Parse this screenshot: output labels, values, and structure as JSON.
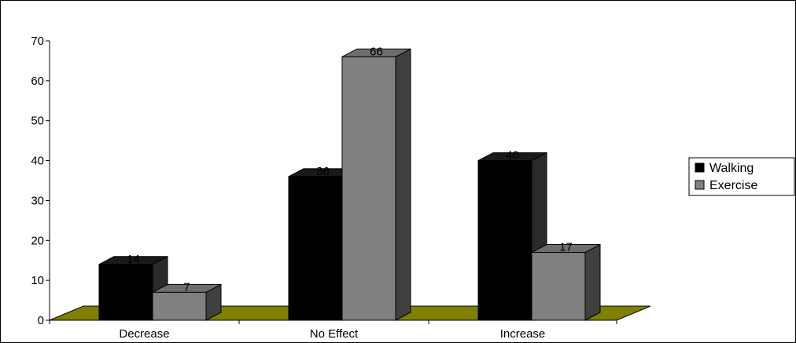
{
  "chart_data": {
    "type": "bar",
    "categories": [
      "Decrease",
      "No Effect",
      "Increase"
    ],
    "series": [
      {
        "name": "Walking",
        "values": [
          14,
          36,
          40
        ],
        "color": "#000000",
        "side_color": "#2a2a2a",
        "top_color": "#1a1a1a"
      },
      {
        "name": "Exercise",
        "values": [
          7,
          66,
          17
        ],
        "color": "#808080",
        "side_color": "#404040",
        "top_color": "#6e6e6e"
      }
    ],
    "y_ticks": [
      0,
      10,
      20,
      30,
      40,
      50,
      60,
      70
    ],
    "ylim": [
      0,
      70
    ],
    "floor_color": "#808000",
    "legend_placement": "right",
    "grid": false,
    "title": "",
    "xlabel": "",
    "ylabel": ""
  }
}
